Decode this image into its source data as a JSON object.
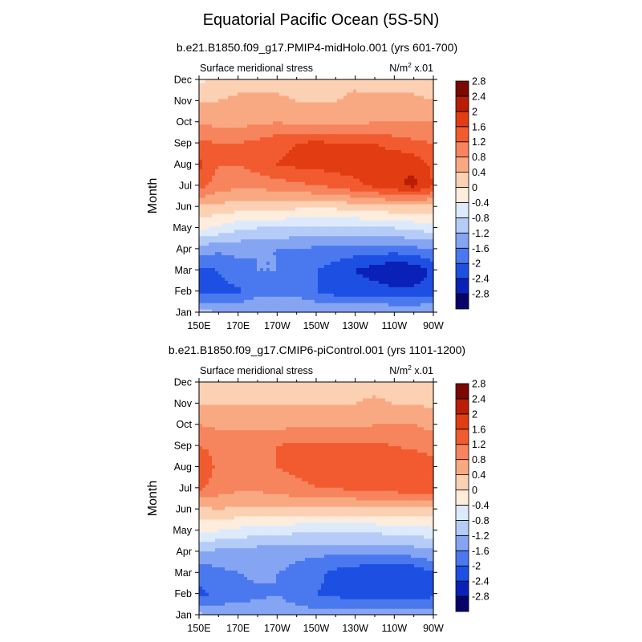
{
  "title": "Equatorial Pacific Ocean (5S-5N)",
  "colorbar": {
    "colors": [
      "#08036b",
      "#0a21b8",
      "#1d4fe3",
      "#4a78ee",
      "#85a5f3",
      "#b5ccf8",
      "#ddeafc",
      "#feecdc",
      "#fcd0b2",
      "#f9a982",
      "#f6845d",
      "#f25b2f",
      "#e23c13",
      "#b81d06",
      "#7a0803"
    ],
    "labels": [
      "-2.8",
      "-2.4",
      "-2",
      "-1.6",
      "-1.2",
      "-0.8",
      "-0.4",
      "0",
      "0.4",
      "0.8",
      "1.2",
      "1.6",
      "2",
      "2.4",
      "2.8"
    ]
  },
  "chart_data": [
    {
      "type": "heatmap",
      "title": "b.e21.B1850.f09_g17.PMIP4-midHolo.001 (yrs 601-700)",
      "left_label": "Surface meridional stress",
      "right_label": "N/m",
      "right_label_sup": "2",
      "right_label_suffix": " x.01",
      "ylabel": "Month",
      "x_ticks": [
        "150E",
        "170E",
        "170W",
        "150W",
        "130W",
        "110W",
        "90W"
      ],
      "y_ticks": [
        "Jan",
        "Feb",
        "Mar",
        "Apr",
        "May",
        "Jun",
        "Jul",
        "Aug",
        "Sep",
        "Oct",
        "Nov",
        "Dec"
      ],
      "x": [
        150,
        160,
        170,
        180,
        190,
        200,
        210,
        220,
        230,
        240,
        250,
        260,
        270
      ],
      "values": [
        [
          -1.0,
          -1.2,
          -1.2,
          -1.2,
          -1.2,
          -1.2,
          -1.2,
          -1.2,
          -1.2,
          -1.2,
          -1.2,
          -1.2,
          -1.2
        ],
        [
          -2.2,
          -2.1,
          -2.1,
          -1.7,
          -1.7,
          -1.7,
          -2.0,
          -2.2,
          -2.2,
          -2.2,
          -2.3,
          -2.3,
          -2.2
        ],
        [
          -2.1,
          -2.0,
          -1.7,
          -1.6,
          -1.6,
          -1.7,
          -2.0,
          -2.2,
          -2.4,
          -2.6,
          -2.8,
          -2.7,
          -2.3
        ],
        [
          -1.4,
          -1.5,
          -1.5,
          -1.6,
          -1.6,
          -1.6,
          -1.7,
          -1.7,
          -1.8,
          -1.8,
          -1.8,
          -1.7,
          -1.6
        ],
        [
          -0.3,
          -0.5,
          -0.7,
          -0.8,
          -0.8,
          -0.9,
          -0.9,
          -0.9,
          -0.9,
          -0.8,
          -0.8,
          -0.7,
          -0.6
        ],
        [
          0.3,
          0.3,
          0.2,
          0.2,
          0.2,
          0.1,
          0.1,
          0.1,
          0.2,
          0.2,
          0.3,
          0.3,
          0.3
        ],
        [
          1.4,
          1.0,
          0.9,
          0.9,
          1.0,
          1.1,
          1.2,
          1.3,
          1.5,
          1.7,
          1.9,
          2.1,
          1.6
        ],
        [
          1.7,
          1.2,
          1.2,
          1.4,
          1.6,
          1.7,
          1.7,
          1.8,
          1.8,
          1.9,
          2.0,
          1.9,
          1.5
        ],
        [
          1.3,
          1.2,
          1.2,
          1.3,
          1.5,
          1.6,
          1.7,
          1.6,
          1.6,
          1.6,
          1.4,
          1.3,
          1.2
        ],
        [
          0.7,
          0.7,
          0.7,
          0.7,
          0.8,
          0.7,
          0.7,
          0.7,
          0.7,
          0.8,
          0.8,
          0.8,
          0.8
        ],
        [
          0.4,
          0.4,
          0.5,
          0.5,
          0.5,
          0.4,
          0.4,
          0.4,
          0.5,
          0.5,
          0.5,
          0.5,
          0.4
        ],
        [
          -0.1,
          0.1,
          0.2,
          0.2,
          0.2,
          0.2,
          0.2,
          0.2,
          0.3,
          0.2,
          0.2,
          0.2,
          0.1
        ]
      ]
    },
    {
      "type": "heatmap",
      "title": "b.e21.B1850.f09_g17.CMIP6-piControl.001 (yrs 1101-1200)",
      "left_label": "Surface meridional stress",
      "right_label": "N/m",
      "right_label_sup": "2",
      "right_label_suffix": " x.01",
      "ylabel": "Month",
      "x_ticks": [
        "150E",
        "170E",
        "170W",
        "150W",
        "130W",
        "110W",
        "90W"
      ],
      "y_ticks": [
        "Jan",
        "Feb",
        "Mar",
        "Apr",
        "May",
        "Jun",
        "Jul",
        "Aug",
        "Sep",
        "Oct",
        "Nov",
        "Dec"
      ],
      "x": [
        150,
        160,
        170,
        180,
        190,
        200,
        210,
        220,
        230,
        240,
        250,
        260,
        270
      ],
      "values": [
        [
          -1.1,
          -1.3,
          -1.3,
          -1.3,
          -1.4,
          -1.4,
          -1.4,
          -1.4,
          -1.4,
          -1.4,
          -1.4,
          -1.4,
          -1.4
        ],
        [
          -2.1,
          -1.9,
          -1.8,
          -1.7,
          -1.6,
          -1.8,
          -2.0,
          -2.1,
          -2.2,
          -2.2,
          -2.2,
          -2.2,
          -2.1
        ],
        [
          -1.9,
          -1.7,
          -1.6,
          -1.5,
          -1.6,
          -1.7,
          -1.9,
          -2.1,
          -2.2,
          -2.4,
          -2.4,
          -2.3,
          -2.0
        ],
        [
          -1.2,
          -1.3,
          -1.3,
          -1.4,
          -1.4,
          -1.5,
          -1.5,
          -1.5,
          -1.5,
          -1.5,
          -1.5,
          -1.4,
          -1.3
        ],
        [
          -0.3,
          -0.4,
          -0.5,
          -0.6,
          -0.6,
          -0.7,
          -0.7,
          -0.7,
          -0.7,
          -0.7,
          -0.6,
          -0.6,
          -0.5
        ],
        [
          0.3,
          0.4,
          0.3,
          0.3,
          0.3,
          0.3,
          0.3,
          0.3,
          0.3,
          0.3,
          0.3,
          0.3,
          0.3
        ],
        [
          1.3,
          1.0,
          0.9,
          0.9,
          1.0,
          1.1,
          1.2,
          1.2,
          1.3,
          1.3,
          1.4,
          1.6,
          1.6
        ],
        [
          1.5,
          1.1,
          1.1,
          1.1,
          1.2,
          1.3,
          1.3,
          1.3,
          1.3,
          1.4,
          1.5,
          1.6,
          1.4
        ],
        [
          1.2,
          1.1,
          1.0,
          1.1,
          1.2,
          1.3,
          1.3,
          1.3,
          1.3,
          1.3,
          1.2,
          1.1,
          1.0
        ],
        [
          0.8,
          0.7,
          0.7,
          0.7,
          0.7,
          0.7,
          0.7,
          0.7,
          0.7,
          0.8,
          0.8,
          0.8,
          0.7
        ],
        [
          0.4,
          0.4,
          0.4,
          0.4,
          0.4,
          0.4,
          0.4,
          0.4,
          0.4,
          0.5,
          0.4,
          0.4,
          0.3
        ],
        [
          0.0,
          0.1,
          0.2,
          0.2,
          0.2,
          0.2,
          0.2,
          0.2,
          0.2,
          0.2,
          0.1,
          0.1,
          0.0
        ]
      ]
    }
  ]
}
